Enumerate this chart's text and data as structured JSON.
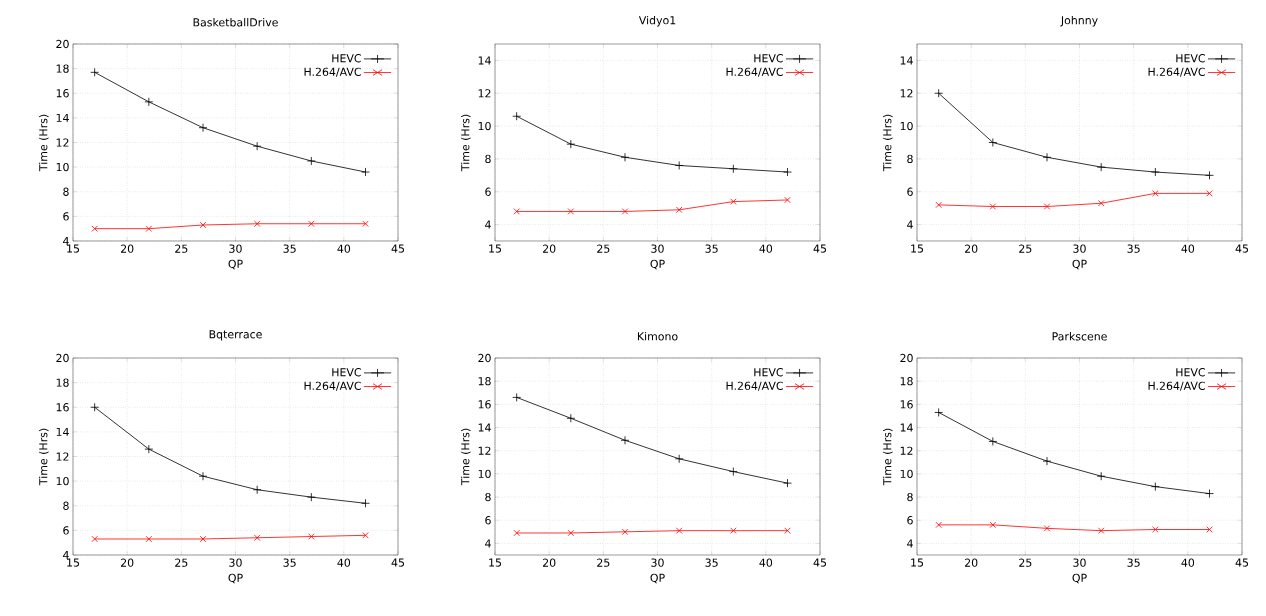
{
  "chart_data": [
    {
      "type": "line",
      "title": "BasketballDrive",
      "xlabel": "QP",
      "ylabel": "Time (Hrs)",
      "xlim": [
        15,
        45
      ],
      "xticks": [
        15,
        20,
        25,
        30,
        35,
        40,
        45
      ],
      "ylim": [
        4,
        20
      ],
      "yticks": [
        4,
        6,
        8,
        10,
        12,
        14,
        16,
        18,
        20
      ],
      "grid": true,
      "legend": "top right",
      "x": [
        17,
        22,
        27,
        32,
        37,
        42
      ],
      "series": [
        {
          "name": "HEVC",
          "color": "#000000",
          "marker": "plus",
          "values": [
            17.7,
            15.3,
            13.2,
            11.7,
            10.5,
            9.6
          ]
        },
        {
          "name": "H.264/AVC",
          "color": "#ff0000",
          "marker": "cross",
          "values": [
            5.0,
            5.0,
            5.3,
            5.4,
            5.4,
            5.4
          ]
        }
      ]
    },
    {
      "type": "line",
      "title": "Vidyo1",
      "xlabel": "QP",
      "ylabel": "Time (Hrs)",
      "xlim": [
        15,
        45
      ],
      "xticks": [
        15,
        20,
        25,
        30,
        35,
        40,
        45
      ],
      "ylim": [
        3,
        15
      ],
      "yticks": [
        4,
        6,
        8,
        10,
        12,
        14
      ],
      "grid": true,
      "legend": "top right",
      "x": [
        17,
        22,
        27,
        32,
        37,
        42
      ],
      "series": [
        {
          "name": "HEVC",
          "color": "#000000",
          "marker": "plus",
          "values": [
            10.6,
            8.9,
            8.1,
            7.6,
            7.4,
            7.2
          ]
        },
        {
          "name": "H.264/AVC",
          "color": "#ff0000",
          "marker": "cross",
          "values": [
            4.8,
            4.8,
            4.8,
            4.9,
            5.4,
            5.5
          ]
        }
      ]
    },
    {
      "type": "line",
      "title": "Johnny",
      "xlabel": "QP",
      "ylabel": "Time (Hrs)",
      "xlim": [
        15,
        45
      ],
      "xticks": [
        15,
        20,
        25,
        30,
        35,
        40,
        45
      ],
      "ylim": [
        3,
        15
      ],
      "yticks": [
        4,
        6,
        8,
        10,
        12,
        14
      ],
      "grid": true,
      "legend": "top right",
      "x": [
        17,
        22,
        27,
        32,
        37,
        42
      ],
      "series": [
        {
          "name": "HEVC",
          "color": "#000000",
          "marker": "plus",
          "values": [
            12.0,
            9.0,
            8.1,
            7.5,
            7.2,
            7.0
          ]
        },
        {
          "name": "H.264/AVC",
          "color": "#ff0000",
          "marker": "cross",
          "values": [
            5.2,
            5.1,
            5.1,
            5.3,
            5.9,
            5.9
          ]
        }
      ]
    },
    {
      "type": "line",
      "title": "Bqterrace",
      "xlabel": "QP",
      "ylabel": "Time (Hrs)",
      "xlim": [
        15,
        45
      ],
      "xticks": [
        15,
        20,
        25,
        30,
        35,
        40,
        45
      ],
      "ylim": [
        4,
        20
      ],
      "yticks": [
        4,
        6,
        8,
        10,
        12,
        14,
        16,
        18,
        20
      ],
      "grid": true,
      "legend": "top right",
      "x": [
        17,
        22,
        27,
        32,
        37,
        42
      ],
      "series": [
        {
          "name": "HEVC",
          "color": "#000000",
          "marker": "plus",
          "values": [
            16.0,
            12.6,
            10.4,
            9.3,
            8.7,
            8.2
          ]
        },
        {
          "name": "H.264/AVC",
          "color": "#ff0000",
          "marker": "cross",
          "values": [
            5.3,
            5.3,
            5.3,
            5.4,
            5.5,
            5.6
          ]
        }
      ]
    },
    {
      "type": "line",
      "title": "Kimono",
      "xlabel": "QP",
      "ylabel": "Time (Hrs)",
      "xlim": [
        15,
        45
      ],
      "xticks": [
        15,
        20,
        25,
        30,
        35,
        40,
        45
      ],
      "ylim": [
        3,
        20
      ],
      "yticks": [
        4,
        6,
        8,
        10,
        12,
        14,
        16,
        18,
        20
      ],
      "grid": true,
      "legend": "top right",
      "x": [
        17,
        22,
        27,
        32,
        37,
        42
      ],
      "series": [
        {
          "name": "HEVC",
          "color": "#000000",
          "marker": "plus",
          "values": [
            16.6,
            14.8,
            12.9,
            11.3,
            10.2,
            9.2
          ]
        },
        {
          "name": "H.264/AVC",
          "color": "#ff0000",
          "marker": "cross",
          "values": [
            4.9,
            4.9,
            5.0,
            5.1,
            5.1,
            5.1
          ]
        }
      ]
    },
    {
      "type": "line",
      "title": "Parkscene",
      "xlabel": "QP",
      "ylabel": "Time (Hrs)",
      "xlim": [
        15,
        45
      ],
      "xticks": [
        15,
        20,
        25,
        30,
        35,
        40,
        45
      ],
      "ylim": [
        3,
        20
      ],
      "yticks": [
        4,
        6,
        8,
        10,
        12,
        14,
        16,
        18,
        20
      ],
      "grid": true,
      "legend": "top right",
      "x": [
        17,
        22,
        27,
        32,
        37,
        42
      ],
      "series": [
        {
          "name": "HEVC",
          "color": "#000000",
          "marker": "plus",
          "values": [
            15.3,
            12.8,
            11.1,
            9.8,
            8.9,
            8.3
          ]
        },
        {
          "name": "H.264/AVC",
          "color": "#ff0000",
          "marker": "cross",
          "values": [
            5.6,
            5.6,
            5.3,
            5.1,
            5.2,
            5.2
          ]
        }
      ]
    }
  ]
}
